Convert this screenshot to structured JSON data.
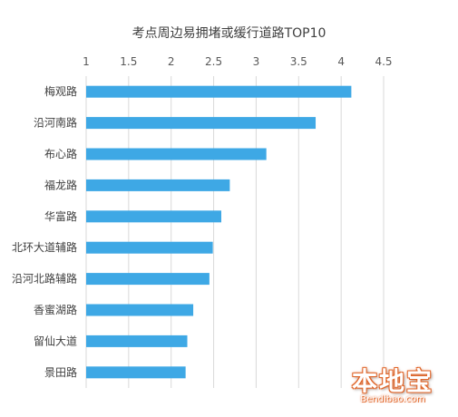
{
  "chart_data": {
    "type": "bar",
    "orientation": "horizontal",
    "title": "考点周边易拥堵或缓行道路TOP10",
    "xlabel": "",
    "ylabel": "",
    "xlim": [
      1,
      4.5
    ],
    "x_ticks": [
      "1",
      "1.5",
      "2",
      "2.5",
      "3",
      "3.5",
      "4",
      "4.5"
    ],
    "x_tick_values": [
      1,
      1.5,
      2,
      2.5,
      3,
      3.5,
      4,
      4.5
    ],
    "x_axis_position": "top",
    "grid": "vertical",
    "legend": "none",
    "categories": [
      "梅观路",
      "沿河南路",
      "布心路",
      "福龙路",
      "华富路",
      "北环大道辅路",
      "沿河北路辅路",
      "香蜜湖路",
      "留仙大道",
      "景田路"
    ],
    "values": [
      4.12,
      3.7,
      3.12,
      2.69,
      2.59,
      2.49,
      2.45,
      2.26,
      2.19,
      2.17
    ],
    "bar_color": "#3ea8e5",
    "grid_color": "#d9d9d9"
  },
  "watermark": {
    "text": "本地宝",
    "url": "Bendibao.com",
    "color": "#e0662a"
  }
}
